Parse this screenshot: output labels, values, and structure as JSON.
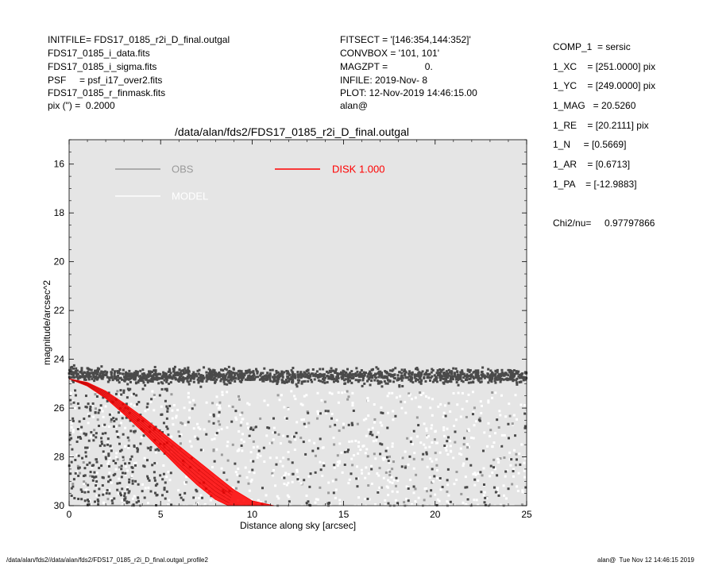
{
  "header_left": [
    "INITFILE= FDS17_0185_r2i_D_final.outgal",
    "FDS17_0185_i_data.fits",
    "FDS17_0185_i_sigma.fits",
    "PSF     = psf_i17_over2.fits",
    "FDS17_0185_r_finmask.fits",
    "pix (\") =  0.2000"
  ],
  "header_mid": [
    "FITSECT = '[146:354,144:352]'",
    "CONVBOX = '101, 101'",
    "MAGZPT =              0.",
    "INFILE: 2019-Nov- 8",
    "PLOT: 12-Nov-2019 14:46:15.00",
    "alan@"
  ],
  "params": [
    "COMP_1  = sersic",
    "1_XC    = [251.0000] pix",
    "1_YC    = [249.0000] pix",
    "1_MAG   = 20.5260",
    "1_RE    = [20.2111] pix",
    "1_N     = [0.5669]",
    "1_AR    = [0.6713]",
    "1_PA    = [-12.9883]"
  ],
  "chi2": "Chi2/nu=     0.97797866",
  "footer_left": "/data/alan/fds2//data/alan/fds2/FDS17_0185_r2i_D_final.outgal_profile2",
  "footer_right": "alan@  Tue Nov 12 14:46:15 2019",
  "chart_data": {
    "type": "scatter",
    "title": "/data/alan/fds2/FDS17_0185_r2i_D_final.outgal",
    "xlabel": "Distance along sky [arcsec]",
    "ylabel": "magnitude/arcsec^2",
    "xlim": [
      0,
      25
    ],
    "ylim": [
      30,
      15
    ],
    "y_inverted": true,
    "xticks": [
      0,
      5,
      10,
      15,
      20,
      25
    ],
    "yticks": [
      16,
      18,
      20,
      22,
      24,
      26,
      28,
      30
    ],
    "grid": false,
    "legend": [
      {
        "label": "OBS",
        "color": "#9a9a9a"
      },
      {
        "label": "MODEL",
        "color": "#ffffff"
      },
      {
        "label": "DISK  1.000",
        "color": "#ff0000"
      }
    ],
    "colors": {
      "background": "#e5e5e5",
      "obs_dark": "#4a4a4a",
      "obs_light": "#ffffff",
      "obs_mid": "#9a9a9a",
      "disk": "#ff0000"
    },
    "series": [
      {
        "name": "OBS",
        "note_values": "noisy band near 24.2-25.2 mag across 0-25 arcsec plus scatter below to 30"
      },
      {
        "name": "DISK  1.000",
        "upper_edge": {
          "x": [
            0,
            1,
            2,
            3,
            4,
            5,
            6,
            7,
            8,
            9,
            10,
            11.2
          ],
          "y": [
            24.8,
            24.95,
            25.3,
            25.8,
            26.35,
            26.95,
            27.55,
            28.15,
            28.75,
            29.35,
            29.8,
            30.0
          ]
        },
        "lower_edge": {
          "x": [
            0,
            1,
            2,
            3,
            4,
            5,
            6,
            7,
            8,
            8.7
          ],
          "y": [
            24.8,
            25.1,
            25.6,
            26.25,
            26.95,
            27.7,
            28.45,
            29.15,
            29.75,
            30.0
          ]
        }
      }
    ]
  }
}
